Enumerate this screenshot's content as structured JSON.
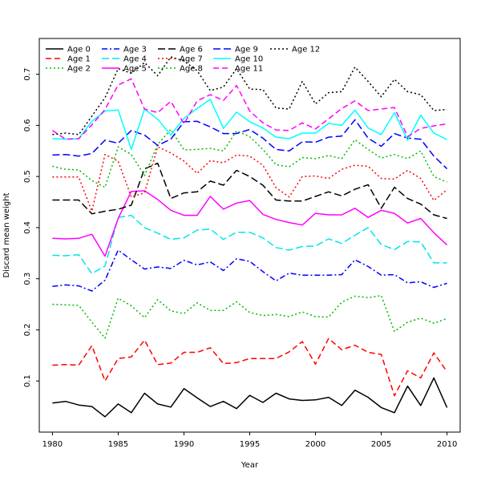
{
  "chart_data": {
    "type": "line",
    "title": "",
    "xlabel": "Year",
    "ylabel": "Discard mean weight",
    "xlim": [
      1979,
      2011
    ],
    "ylim": [
      0.0,
      0.77
    ],
    "x_ticks": [
      "1980",
      "1985",
      "1990",
      "1995",
      "2000",
      "2005",
      "2010"
    ],
    "y_ticks": [
      "0.1",
      "0.2",
      "0.3",
      "0.4",
      "0.5",
      "0.6",
      "0.7"
    ],
    "legend_position": "top-left",
    "grid": false,
    "x": [
      1980,
      1981,
      1982,
      1983,
      1984,
      1985,
      1986,
      1987,
      1988,
      1989,
      1990,
      1991,
      1992,
      1993,
      1994,
      1995,
      1996,
      1997,
      1998,
      1999,
      2000,
      2001,
      2002,
      2003,
      2004,
      2005,
      2006,
      2007,
      2008,
      2009,
      2010
    ],
    "series": [
      {
        "name": "Age 0",
        "color": "#000000",
        "dash": "solid",
        "values": [
          0.057,
          0.06,
          0.053,
          0.05,
          0.03,
          0.055,
          0.038,
          0.076,
          0.055,
          0.049,
          0.085,
          0.067,
          0.05,
          0.06,
          0.046,
          0.072,
          0.058,
          0.076,
          0.065,
          0.062,
          0.063,
          0.068,
          0.052,
          0.082,
          0.068,
          0.048,
          0.038,
          0.09,
          0.052,
          0.106,
          0.048
        ]
      },
      {
        "name": "Age 1",
        "color": "#ff0000",
        "dash": "dashed",
        "values": [
          0.131,
          0.132,
          0.131,
          0.169,
          0.1,
          0.144,
          0.147,
          0.18,
          0.132,
          0.135,
          0.156,
          0.156,
          0.165,
          0.134,
          0.136,
          0.144,
          0.144,
          0.144,
          0.157,
          0.177,
          0.133,
          0.183,
          0.161,
          0.17,
          0.156,
          0.152,
          0.071,
          0.12,
          0.106,
          0.155,
          0.118
        ]
      },
      {
        "name": "Age 2",
        "color": "#00bb00",
        "dash": "dotted",
        "values": [
          0.25,
          0.249,
          0.248,
          0.215,
          0.184,
          0.262,
          0.247,
          0.224,
          0.259,
          0.237,
          0.232,
          0.253,
          0.238,
          0.238,
          0.255,
          0.234,
          0.228,
          0.23,
          0.226,
          0.235,
          0.226,
          0.225,
          0.254,
          0.266,
          0.263,
          0.267,
          0.197,
          0.215,
          0.223,
          0.213,
          0.222
        ]
      },
      {
        "name": "Age 3",
        "color": "#0000ff",
        "dash": "dashdot",
        "values": [
          0.285,
          0.288,
          0.286,
          0.276,
          0.297,
          0.356,
          0.337,
          0.319,
          0.323,
          0.32,
          0.336,
          0.327,
          0.333,
          0.316,
          0.339,
          0.334,
          0.314,
          0.296,
          0.311,
          0.307,
          0.307,
          0.307,
          0.308,
          0.337,
          0.324,
          0.307,
          0.308,
          0.292,
          0.294,
          0.283,
          0.291
        ]
      },
      {
        "name": "Age 4",
        "color": "#00e6e6",
        "dash": "longdash",
        "values": [
          0.346,
          0.345,
          0.347,
          0.31,
          0.325,
          0.42,
          0.424,
          0.4,
          0.389,
          0.377,
          0.38,
          0.395,
          0.397,
          0.377,
          0.391,
          0.391,
          0.38,
          0.361,
          0.356,
          0.363,
          0.364,
          0.378,
          0.369,
          0.385,
          0.4,
          0.367,
          0.357,
          0.373,
          0.372,
          0.331,
          0.331
        ]
      },
      {
        "name": "Age 5",
        "color": "#ff00ff",
        "dash": "solid",
        "values": [
          0.379,
          0.378,
          0.379,
          0.387,
          0.344,
          0.418,
          0.471,
          0.472,
          0.455,
          0.434,
          0.424,
          0.424,
          0.461,
          0.436,
          0.448,
          0.453,
          0.426,
          0.416,
          0.41,
          0.405,
          0.428,
          0.425,
          0.425,
          0.438,
          0.42,
          0.434,
          0.428,
          0.409,
          0.418,
          0.39,
          0.366
        ]
      },
      {
        "name": "Age 6",
        "color": "#000000",
        "dash": "longdash",
        "values": [
          0.454,
          0.454,
          0.454,
          0.427,
          0.432,
          0.436,
          0.444,
          0.515,
          0.526,
          0.457,
          0.468,
          0.47,
          0.491,
          0.483,
          0.512,
          0.5,
          0.483,
          0.454,
          0.452,
          0.452,
          0.461,
          0.47,
          0.462,
          0.475,
          0.484,
          0.438,
          0.479,
          0.457,
          0.446,
          0.425,
          0.418
        ]
      },
      {
        "name": "Age 7",
        "color": "#ff0000",
        "dash": "dotted",
        "values": [
          0.499,
          0.499,
          0.499,
          0.432,
          0.543,
          0.53,
          0.46,
          0.468,
          0.558,
          0.546,
          0.53,
          0.506,
          0.531,
          0.527,
          0.542,
          0.54,
          0.522,
          0.478,
          0.46,
          0.5,
          0.501,
          0.496,
          0.514,
          0.522,
          0.52,
          0.496,
          0.495,
          0.512,
          0.496,
          0.453,
          0.474
        ]
      },
      {
        "name": "Age 8",
        "color": "#00bb00",
        "dash": "dotted",
        "values": [
          0.52,
          0.514,
          0.513,
          0.492,
          0.479,
          0.558,
          0.543,
          0.502,
          0.563,
          0.592,
          0.552,
          0.553,
          0.555,
          0.55,
          0.589,
          0.578,
          0.553,
          0.523,
          0.519,
          0.537,
          0.535,
          0.541,
          0.535,
          0.572,
          0.553,
          0.536,
          0.543,
          0.535,
          0.55,
          0.5,
          0.489
        ]
      },
      {
        "name": "Age 9",
        "color": "#0000ff",
        "dash": "longdash",
        "values": [
          0.542,
          0.543,
          0.54,
          0.545,
          0.571,
          0.565,
          0.59,
          0.581,
          0.561,
          0.573,
          0.607,
          0.608,
          0.597,
          0.584,
          0.584,
          0.592,
          0.575,
          0.553,
          0.55,
          0.568,
          0.567,
          0.577,
          0.579,
          0.611,
          0.575,
          0.559,
          0.584,
          0.575,
          0.573,
          0.54,
          0.515
        ]
      },
      {
        "name": "Age 10",
        "color": "#00ffff",
        "dash": "solid",
        "values": [
          0.574,
          0.573,
          0.574,
          0.608,
          0.628,
          0.63,
          0.553,
          0.632,
          0.612,
          0.581,
          0.614,
          0.633,
          0.651,
          0.594,
          0.626,
          0.607,
          0.595,
          0.577,
          0.574,
          0.585,
          0.585,
          0.604,
          0.6,
          0.63,
          0.595,
          0.582,
          0.625,
          0.571,
          0.62,
          0.585,
          0.572
        ]
      },
      {
        "name": "Age 11",
        "color": "#ff00ff",
        "dash": "dashed",
        "values": [
          0.59,
          0.573,
          0.574,
          0.601,
          0.631,
          0.679,
          0.691,
          0.632,
          0.625,
          0.647,
          0.603,
          0.648,
          0.66,
          0.649,
          0.678,
          0.628,
          0.605,
          0.591,
          0.59,
          0.605,
          0.593,
          0.613,
          0.633,
          0.648,
          0.629,
          0.632,
          0.635,
          0.578,
          0.594,
          0.599,
          0.603
        ]
      },
      {
        "name": "Age 12",
        "color": "#000000",
        "dash": "dotted",
        "values": [
          0.582,
          0.585,
          0.582,
          0.618,
          0.654,
          0.711,
          0.702,
          0.723,
          0.697,
          0.734,
          0.726,
          0.707,
          0.668,
          0.675,
          0.711,
          0.671,
          0.67,
          0.634,
          0.632,
          0.686,
          0.642,
          0.664,
          0.666,
          0.714,
          0.686,
          0.656,
          0.69,
          0.666,
          0.66,
          0.629,
          0.631
        ]
      }
    ]
  }
}
